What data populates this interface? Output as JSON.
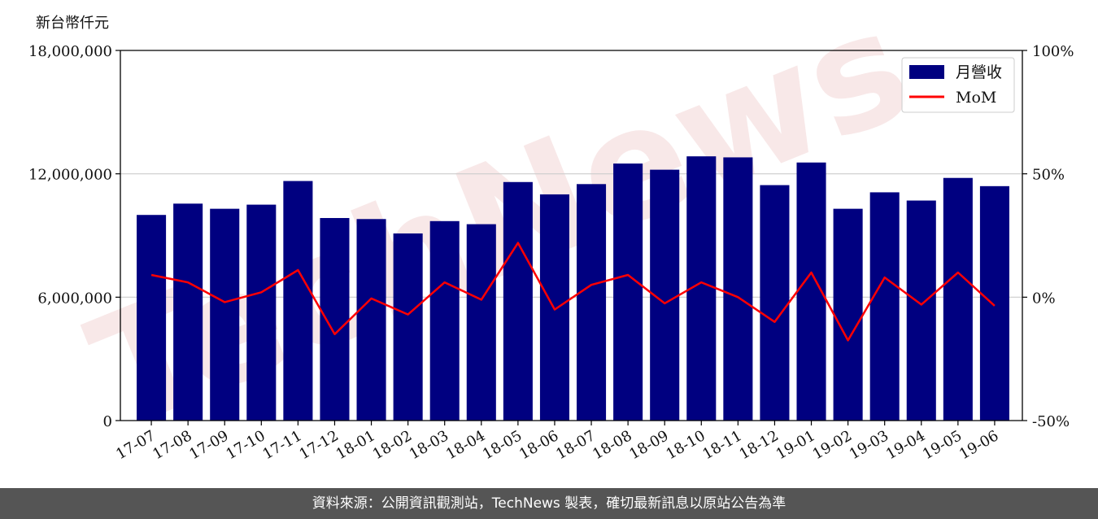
{
  "chart_data": {
    "type": "bar+line",
    "y_unit": "新台幣仟元",
    "categories": [
      "17-07",
      "17-08",
      "17-09",
      "17-10",
      "17-11",
      "17-12",
      "18-01",
      "18-02",
      "18-03",
      "18-04",
      "18-05",
      "18-06",
      "18-07",
      "18-08",
      "18-09",
      "18-10",
      "18-11",
      "18-12",
      "19-01",
      "19-02",
      "19-03",
      "19-04",
      "19-05",
      "19-06"
    ],
    "series": [
      {
        "name": "月營收",
        "axis": "left",
        "color": "#000080",
        "values": [
          10000000,
          10550000,
          10300000,
          10500000,
          11650000,
          9850000,
          9800000,
          9100000,
          9700000,
          9550000,
          11600000,
          11000000,
          11500000,
          12500000,
          12200000,
          12850000,
          12800000,
          11450000,
          12550000,
          10300000,
          11100000,
          10700000,
          11800000,
          11400000
        ]
      },
      {
        "name": "MoM",
        "axis": "right",
        "color": "#ff0000",
        "values": [
          9,
          6,
          -2,
          2,
          11,
          -15,
          -0.5,
          -7,
          6,
          -1,
          22,
          -5,
          5,
          9,
          -2.5,
          6,
          0,
          -10,
          10,
          -17.5,
          8,
          -3,
          10,
          -3.5
        ]
      }
    ],
    "y_left": {
      "min": 0,
      "max": 18000000,
      "ticks": [
        0,
        6000000,
        12000000,
        18000000
      ],
      "tick_labels": [
        "0",
        "6,000,000",
        "12,000,000",
        "18,000,000"
      ]
    },
    "y_right": {
      "min": -50,
      "max": 100,
      "ticks": [
        -50,
        0,
        50,
        100
      ],
      "tick_labels": [
        "-50%",
        "0%",
        "50%",
        "100%"
      ]
    },
    "grid": "horizontal",
    "legend": "top-right"
  },
  "watermark": "TechNews",
  "footer": "資料來源：公開資訊觀測站，TechNews 製表，確切最新訊息以原站公告為準"
}
